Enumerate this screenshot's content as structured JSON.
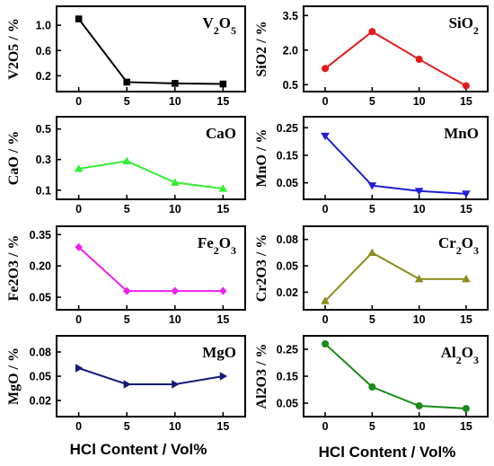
{
  "figure": {
    "xlabels": [
      "HCl Content / Vol%",
      "HCl Content / Vol%"
    ]
  },
  "chart_data": [
    {
      "type": "line",
      "title": "V2O5",
      "title_parts": [
        {
          "t": "V"
        },
        {
          "t": "2",
          "sub": true
        },
        {
          "t": "O"
        },
        {
          "t": "5",
          "sub": true
        }
      ],
      "ylabel": "V2O5 / %",
      "x": [
        0,
        5,
        10,
        15
      ],
      "xticks": [
        "0",
        "5",
        "10",
        "15"
      ],
      "y": [
        1.1,
        0.1,
        0.08,
        0.07
      ],
      "yticks": [
        0.2,
        0.6,
        1.0
      ],
      "yticklabels": [
        "0.2",
        "0.6",
        "1.0"
      ],
      "ylim": [
        -0.05,
        1.3
      ],
      "color": "#000000",
      "marker": "square"
    },
    {
      "type": "line",
      "title": "SiO2",
      "title_parts": [
        {
          "t": "SiO"
        },
        {
          "t": "2",
          "sub": true
        }
      ],
      "ylabel": "SiO2 / %",
      "x": [
        0,
        5,
        10,
        15
      ],
      "xticks": [
        "0",
        "5",
        "10",
        "15"
      ],
      "y": [
        1.2,
        2.8,
        1.6,
        0.45
      ],
      "yticks": [
        0.5,
        2.0,
        3.5
      ],
      "yticklabels": [
        "0.5",
        "2.0",
        "3.5"
      ],
      "ylim": [
        0.2,
        3.9
      ],
      "color": "#e41a1c",
      "marker": "circle"
    },
    {
      "type": "line",
      "title": "CaO",
      "title_parts": [
        {
          "t": "CaO"
        }
      ],
      "ylabel": "CaO / %",
      "x": [
        0,
        5,
        10,
        15
      ],
      "xticks": [
        "0",
        "5",
        "10",
        "15"
      ],
      "y": [
        0.24,
        0.29,
        0.15,
        0.11
      ],
      "yticks": [
        0.1,
        0.3,
        0.5
      ],
      "yticklabels": [
        "0.1",
        "0.3",
        "0.5"
      ],
      "ylim": [
        0.04,
        0.58
      ],
      "color": "#33ee33",
      "marker": "triangle-up"
    },
    {
      "type": "line",
      "title": "MnO",
      "title_parts": [
        {
          "t": "MnO"
        }
      ],
      "ylabel": "MnO / %",
      "x": [
        0,
        5,
        10,
        15
      ],
      "xticks": [
        "0",
        "5",
        "10",
        "15"
      ],
      "y": [
        0.22,
        0.04,
        0.02,
        0.01
      ],
      "yticks": [
        0.05,
        0.15,
        0.25
      ],
      "yticklabels": [
        "0.05",
        "0.15",
        "0.25"
      ],
      "ylim": [
        -0.01,
        0.29
      ],
      "color": "#1f1fd6",
      "marker": "triangle-down"
    },
    {
      "type": "line",
      "title": "Fe2O3",
      "title_parts": [
        {
          "t": "Fe"
        },
        {
          "t": "2",
          "sub": true
        },
        {
          "t": "O"
        },
        {
          "t": "3",
          "sub": true
        }
      ],
      "ylabel": "Fe2O3 / %",
      "x": [
        0,
        5,
        10,
        15
      ],
      "xticks": [
        "0",
        "5",
        "10",
        "15"
      ],
      "y": [
        0.29,
        0.08,
        0.08,
        0.08
      ],
      "yticks": [
        0.05,
        0.2,
        0.35
      ],
      "yticklabels": [
        "0.05",
        "0.20",
        "0.35"
      ],
      "ylim": [
        -0.01,
        0.39
      ],
      "color": "#ee22ee",
      "marker": "diamond"
    },
    {
      "type": "line",
      "title": "Cr2O3",
      "title_parts": [
        {
          "t": "Cr"
        },
        {
          "t": "2",
          "sub": true
        },
        {
          "t": "O"
        },
        {
          "t": "3",
          "sub": true
        }
      ],
      "ylabel": "Cr2O3 / %",
      "x": [
        0,
        5,
        10,
        15
      ],
      "xticks": [
        "0",
        "5",
        "10",
        "15"
      ],
      "y": [
        0.01,
        0.065,
        0.035,
        0.035
      ],
      "yticks": [
        0.02,
        0.05,
        0.08
      ],
      "yticklabels": [
        "0.02",
        "0.05",
        "0.08"
      ],
      "ylim": [
        0.0,
        0.095
      ],
      "color": "#8c8c1a",
      "marker": "triangle-up"
    },
    {
      "type": "line",
      "title": "MgO",
      "title_parts": [
        {
          "t": "MgO"
        }
      ],
      "ylabel": "MgO / %",
      "x": [
        0,
        5,
        10,
        15
      ],
      "xticks": [
        "0",
        "5",
        "10",
        "15"
      ],
      "y": [
        0.06,
        0.04,
        0.04,
        0.05
      ],
      "yticks": [
        0.02,
        0.05,
        0.08
      ],
      "yticklabels": [
        "0.02",
        "0.05",
        "0.08"
      ],
      "ylim": [
        0.0,
        0.1
      ],
      "color": "#141a78",
      "marker": "triangle-right"
    },
    {
      "type": "line",
      "title": "Al2O3",
      "title_parts": [
        {
          "t": "Al"
        },
        {
          "t": "2",
          "sub": true
        },
        {
          "t": "O"
        },
        {
          "t": "3",
          "sub": true
        }
      ],
      "ylabel": "Al2O3 / %",
      "x": [
        0,
        5,
        10,
        15
      ],
      "xticks": [
        "0",
        "5",
        "10",
        "15"
      ],
      "y": [
        0.27,
        0.11,
        0.04,
        0.03
      ],
      "yticks": [
        0.05,
        0.15,
        0.25
      ],
      "yticklabels": [
        "0.05",
        "0.15",
        "0.25"
      ],
      "ylim": [
        0.0,
        0.3
      ],
      "color": "#1a8c1a",
      "marker": "circle"
    }
  ]
}
